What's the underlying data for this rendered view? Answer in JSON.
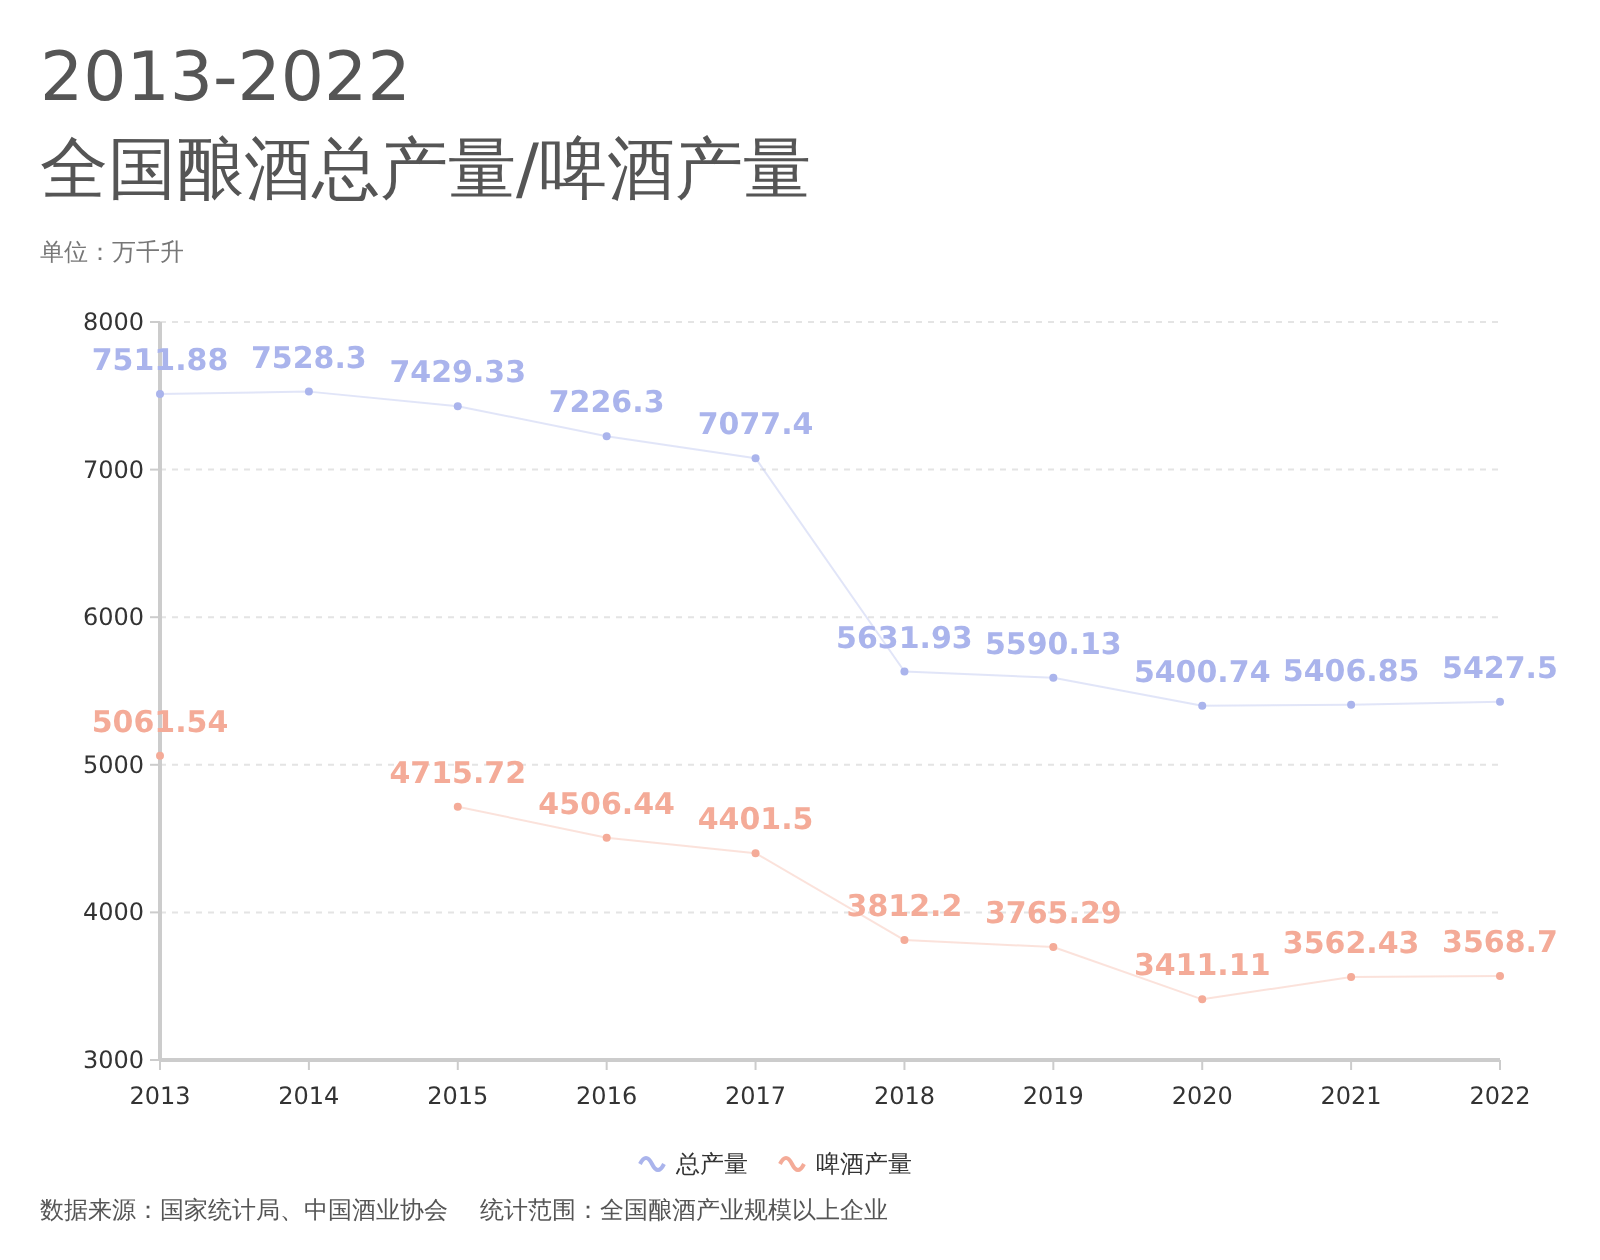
{
  "chart_data": {
    "type": "line",
    "title": "2013-2022\n全国酿酒总产量/啤酒产量",
    "subtitle": "单位：万千升",
    "categories": [
      "2013",
      "2014",
      "2015",
      "2016",
      "2017",
      "2018",
      "2019",
      "2020",
      "2021",
      "2022"
    ],
    "series": [
      {
        "name": "总产量",
        "color": "#aab4ec",
        "values": [
          7511.88,
          7528.3,
          7429.33,
          7226.3,
          7077.4,
          5631.93,
          5590.13,
          5400.74,
          5406.85,
          5427.5
        ]
      },
      {
        "name": "啤酒产量",
        "color": "#f4ab98",
        "values": [
          5061.54,
          null,
          4715.72,
          4506.44,
          4401.5,
          3812.2,
          3765.29,
          3411.11,
          3562.43,
          3568.7
        ]
      }
    ],
    "ylim": [
      3000,
      8000
    ],
    "yticks": [
      3000,
      4000,
      5000,
      6000,
      7000,
      8000
    ],
    "grid": "y",
    "legend": "bottom",
    "data_labels": true,
    "marker": "circle",
    "annotations": [
      "数据来源：国家统计局、中国酒业协会",
      "统计范围：全国酿酒产业规模以上企业"
    ]
  }
}
